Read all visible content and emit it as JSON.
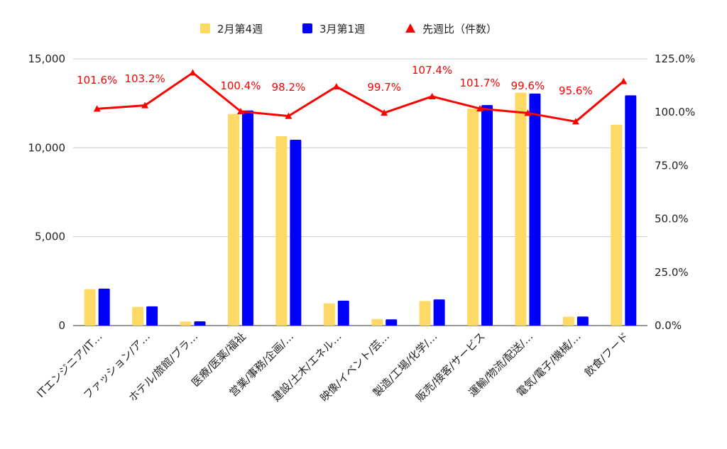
{
  "chart_data": {
    "type": "bar",
    "categories": [
      "ITエンジニア/IT…",
      "ファッション/ア…",
      "ホテル/旅館/ブラ…",
      "医療/医薬/福祉",
      "営業/事務/企画/…",
      "建設/土木/エネル…",
      "映像/イベント/芸…",
      "製造/工場/化学/…",
      "販売/接客/サービス",
      "運輸/物流/配送/…",
      "電気/電子/機械/…",
      "飲食/フード"
    ],
    "series": [
      {
        "name": "2月第4週",
        "type": "bar",
        "axis": "left",
        "color": "#FFD966",
        "values": [
          2050,
          1050,
          230,
          11900,
          10650,
          1250,
          370,
          1380,
          12200,
          13100,
          500,
          11300
        ]
      },
      {
        "name": "3月第1週",
        "type": "bar",
        "axis": "left",
        "color": "#0000FF",
        "values": [
          2080,
          1080,
          240,
          12100,
          10450,
          1400,
          350,
          1470,
          12400,
          13050,
          510,
          12950
        ]
      },
      {
        "name": "先週比（件数）",
        "type": "line",
        "axis": "right",
        "color": "#FF0000",
        "values": [
          101.6,
          103.2,
          118.5,
          100.4,
          98.2,
          112.0,
          99.7,
          107.4,
          101.7,
          99.6,
          95.6,
          114.5
        ]
      }
    ],
    "data_labels": [
      "101.6%",
      "103.2%",
      "",
      "100.4%",
      "98.2%",
      "",
      "99.7%",
      "107.4%",
      "101.7%",
      "99.6%",
      "95.6%",
      ""
    ],
    "y_left": {
      "min": 0,
      "max": 15000,
      "ticks": [
        "0",
        "5,000",
        "10,000",
        "15,000"
      ],
      "tick_values": [
        0,
        5000,
        10000,
        15000
      ]
    },
    "y_right": {
      "min": 0,
      "max": 125,
      "ticks": [
        "0.0%",
        "25.0%",
        "50.0%",
        "75.0%",
        "100.0%",
        "125.0%"
      ],
      "tick_values": [
        0,
        25,
        50,
        75,
        100,
        125
      ]
    },
    "grid": true,
    "legend_position": "top-center"
  }
}
